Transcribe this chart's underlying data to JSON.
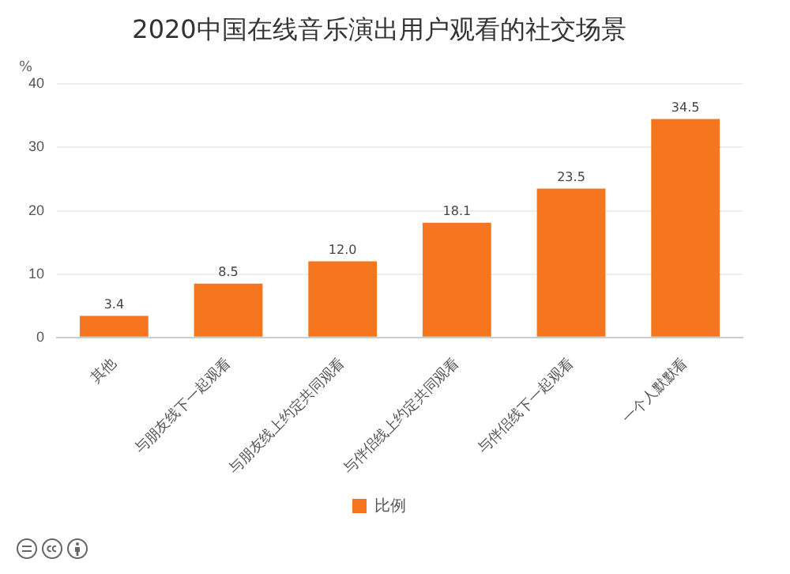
{
  "chart_data": {
    "type": "bar",
    "title": "2020中国在线音乐演出用户观看的社交场景",
    "ylabel": "%",
    "categories": [
      "其他",
      "与朋友线下一起观看",
      "与朋友线上约定共同观看",
      "与伴侣线上约定共同观看",
      "与伴侣线下一起观看",
      "一个人默默看"
    ],
    "series": [
      {
        "name": "比例",
        "color": "#f5761f",
        "values": [
          3.4,
          8.5,
          12.0,
          18.1,
          23.5,
          34.5
        ],
        "value_labels": [
          "3.4",
          "8.5",
          "12.0",
          "18.1",
          "23.5",
          "34.5"
        ]
      }
    ],
    "ylim": [
      0,
      40
    ],
    "yticks": [
      0,
      10,
      20,
      30,
      40
    ],
    "grid": "y",
    "legend": "bottom"
  }
}
